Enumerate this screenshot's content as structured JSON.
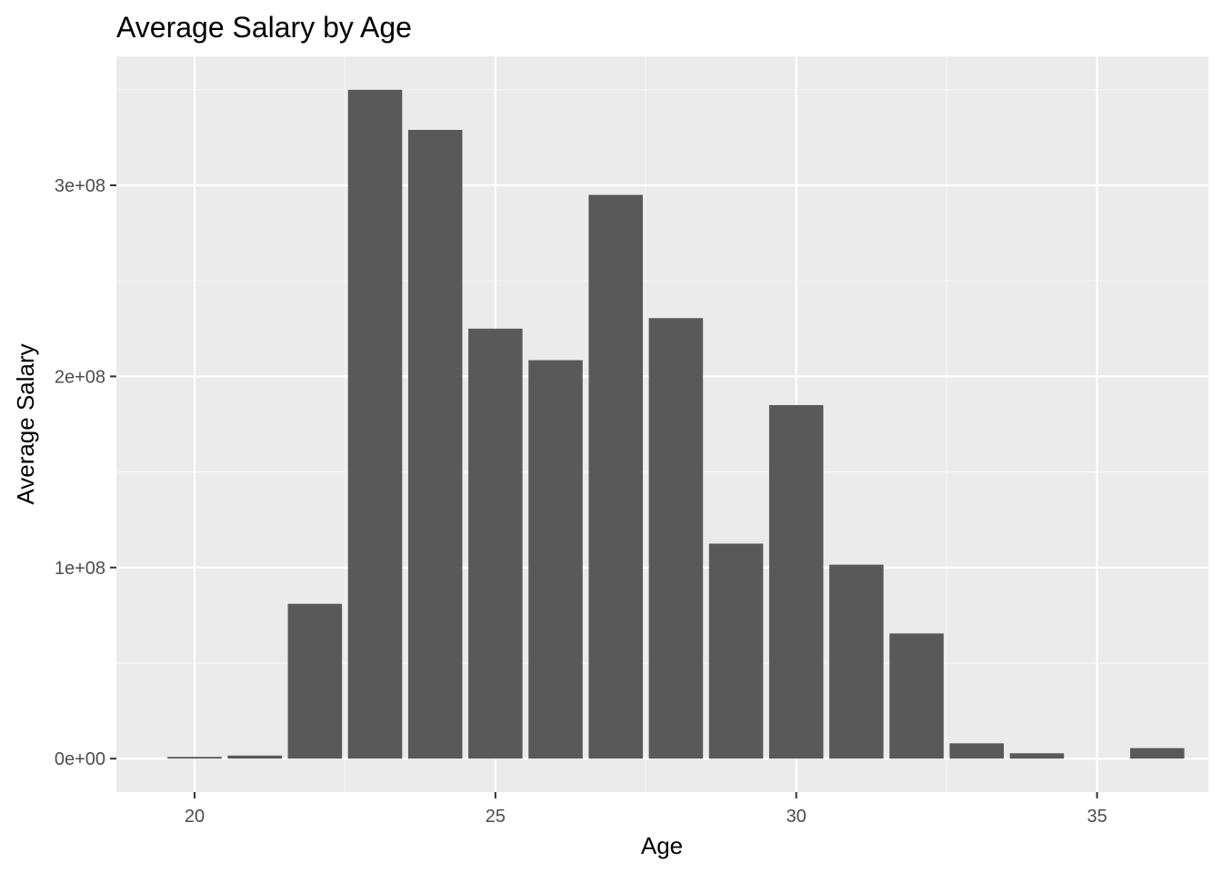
{
  "chart_data": {
    "type": "bar",
    "title": "Average Salary by Age",
    "xlabel": "Age",
    "ylabel": "Average Salary",
    "x": [
      20,
      21,
      22,
      23,
      24,
      25,
      26,
      27,
      28,
      29,
      30,
      31,
      32,
      33,
      34,
      36
    ],
    "values": [
      900000,
      1600000,
      81000000,
      350000000,
      329000000,
      225000000,
      208500000,
      295000000,
      230500000,
      112500000,
      185000000,
      101500000,
      65500000,
      8000000,
      2800000,
      5500000
    ],
    "xlim": [
      18.7,
      36.85
    ],
    "ylim": [
      -17500000,
      367500000
    ],
    "x_ticks": [
      20,
      25,
      30,
      35
    ],
    "x_tick_labels": [
      "20",
      "25",
      "30",
      "35"
    ],
    "y_ticks": [
      0,
      100000000,
      200000000,
      300000000
    ],
    "y_tick_labels": [
      "0e+00",
      "1e+08",
      "2e+08",
      "3e+08"
    ],
    "grid": true,
    "legend": "none",
    "colors": {
      "bar": "#595959",
      "panel_background": "#ebebeb",
      "grid_major": "#ffffff",
      "grid_minor": "#f5f5f5",
      "tick_text": "#4d4d4d"
    }
  }
}
